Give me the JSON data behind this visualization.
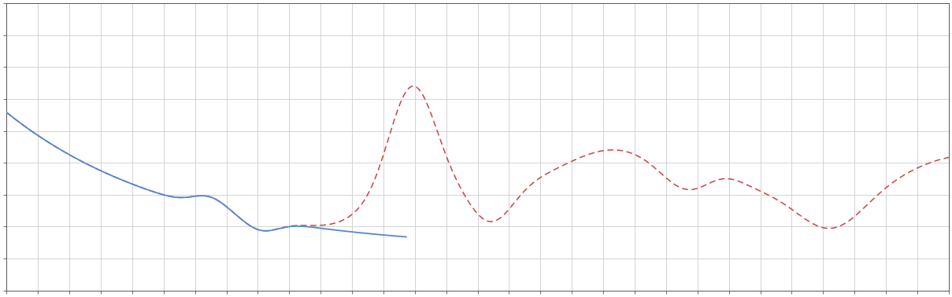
{
  "background_color": "#ffffff",
  "plot_bg_color": "#ffffff",
  "grid_color": "#cccccc",
  "axis_color": "#555555",
  "tick_color": "#555555",
  "blue_line_color": "#5588cc",
  "red_line_color": "#cc4444",
  "xlim": [
    0,
    1
  ],
  "ylim": [
    0,
    1
  ],
  "figsize": [
    12.09,
    3.78
  ],
  "dpi": 100
}
